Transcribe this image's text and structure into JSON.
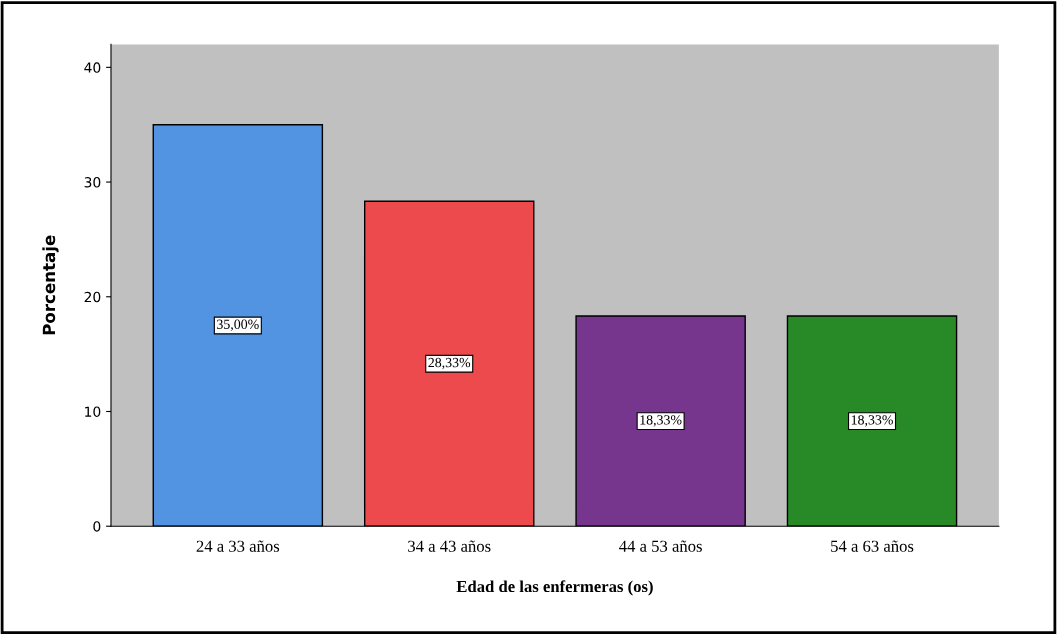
{
  "chart_data": {
    "type": "bar",
    "xlabel": "Edad de las enfermeras (os)",
    "ylabel": "Porcentaje",
    "categories": [
      "24 a 33 años",
      "34 a 43 años",
      "44 a 53 años",
      "54 a 63 años"
    ],
    "values": [
      35.0,
      28.33,
      18.33,
      18.33
    ],
    "colors": [
      "#5294e2",
      "#ec4a4c",
      "#77368e",
      "#288a27"
    ],
    "value_labels": [
      "35,00%",
      "28,33%",
      "18,33%",
      "18,33%"
    ],
    "ylim": [
      0,
      42
    ],
    "yticks": [
      0,
      10,
      20,
      30,
      40
    ],
    "grid": false,
    "legend": false
  }
}
